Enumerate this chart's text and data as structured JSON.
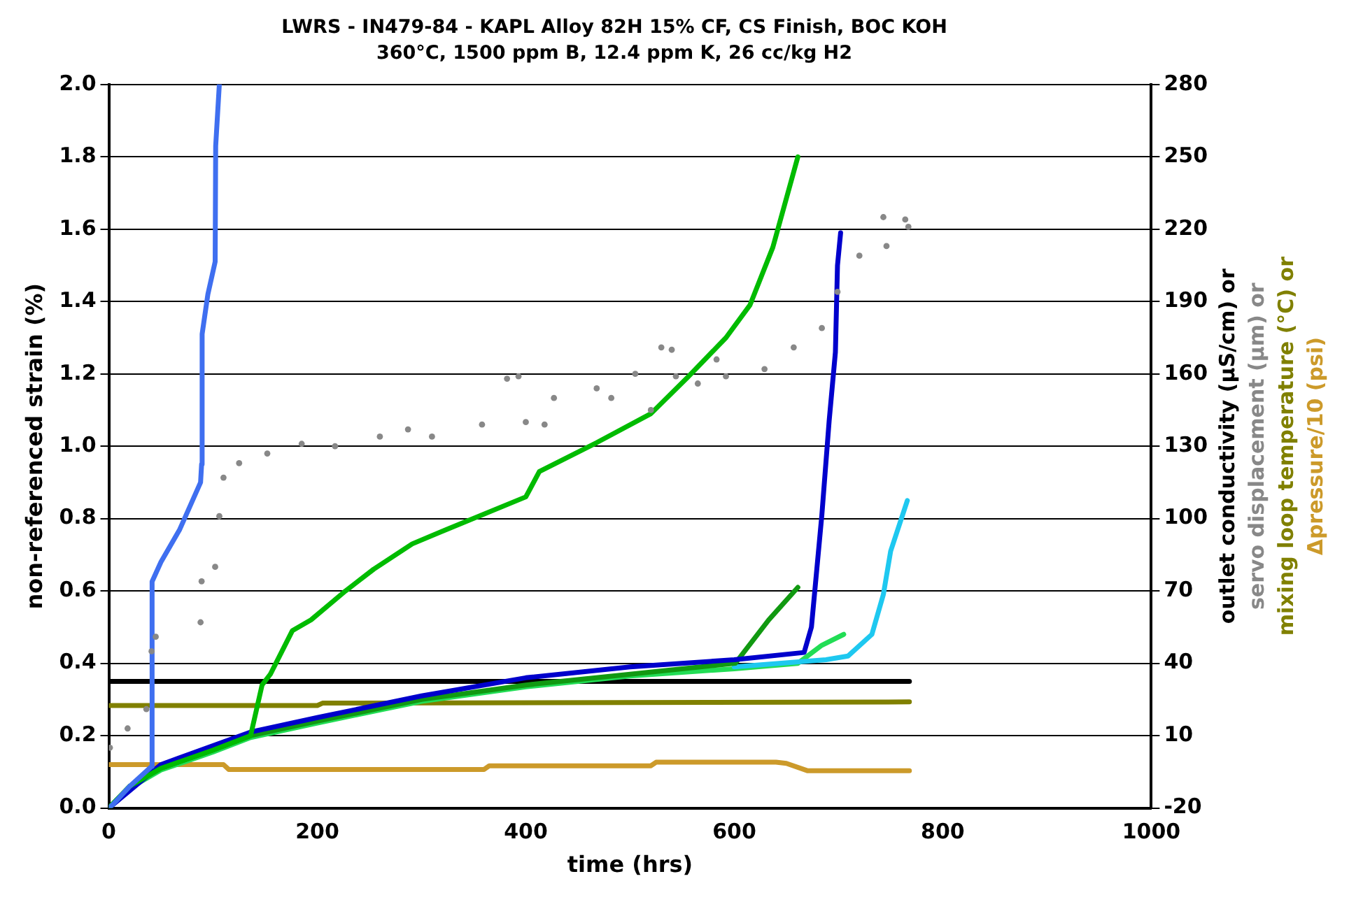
{
  "chart_data": {
    "type": "line",
    "title": "LWRS - IN479-84 - KAPL Alloy 82H 15% CF, CS Finish, BOC KOH",
    "subtitle": "360°C, 1500 ppm B, 12.4 ppm K, 26 cc/kg H2",
    "xlabel": "time (hrs)",
    "ylabel": "non-referenced strain (%)",
    "y2label": "outlet conductivity (µS/cm) or\nservo displacement (µm) or\nmixing loop temperature (°C) or\nΔpressure/10 (psi)",
    "xlim": [
      0,
      1000
    ],
    "xticks": [
      0,
      200,
      400,
      600,
      800,
      1000
    ],
    "ylim": [
      0,
      2.0
    ],
    "yticks": [
      {
        "value": 0,
        "label": "0.0"
      },
      {
        "value": 0.2,
        "label": "0.2"
      },
      {
        "value": 0.4,
        "label": "0.4"
      },
      {
        "value": 0.6,
        "label": "0.6"
      },
      {
        "value": 0.8,
        "label": "0.8"
      },
      {
        "value": 1.0,
        "label": "1.0"
      },
      {
        "value": 1.2,
        "label": "1.2"
      },
      {
        "value": 1.4,
        "label": "1.4"
      },
      {
        "value": 1.6,
        "label": "1.6"
      },
      {
        "value": 1.8,
        "label": "1.8"
      },
      {
        "value": 2.0,
        "label": "2.0"
      }
    ],
    "y2lim": [
      -20,
      280
    ],
    "y2ticks": [
      -20,
      10,
      40,
      70,
      100,
      130,
      160,
      190,
      220,
      250,
      280
    ],
    "grid": "y",
    "legend": false,
    "marker": "none",
    "line_style": "solid",
    "series": [
      {
        "color": "#3f6ff0",
        "x": [
          0,
          4,
          20,
          41,
          41.5,
          50,
          68,
          88,
          89,
          89.5,
          95,
          102,
          102.5,
          106
        ],
        "values": [
          0,
          0.01,
          0.06,
          0.115,
          0.626,
          0.68,
          0.77,
          0.9,
          0.95,
          1.31,
          1.42,
          1.51,
          1.83,
          2.0
        ]
      },
      {
        "color": "#00bb00",
        "x": [
          0,
          20,
          50,
          100,
          136,
          147,
          155,
          176,
          194,
          227,
          254,
          291,
          324,
          400,
          413,
          468,
          520,
          555,
          592,
          615,
          637,
          661
        ],
        "values": [
          0,
          0.06,
          0.11,
          0.16,
          0.2,
          0.34,
          0.37,
          0.49,
          0.52,
          0.6,
          0.66,
          0.73,
          0.77,
          0.86,
          0.93,
          1.01,
          1.09,
          1.19,
          1.3,
          1.39,
          1.55,
          1.8
        ]
      },
      {
        "color": "#0000cc",
        "x": [
          0,
          50,
          136,
          200,
          300,
          400,
          500,
          600,
          667,
          674,
          684,
          691,
          697,
          699,
          702
        ],
        "values": [
          0,
          0.12,
          0.21,
          0.25,
          0.31,
          0.36,
          0.39,
          0.41,
          0.43,
          0.5,
          0.81,
          1.07,
          1.26,
          1.5,
          1.59
        ]
      },
      {
        "color": "#119911",
        "x": [
          0,
          20,
          50,
          100,
          136,
          200,
          300,
          400,
          500,
          601,
          633,
          661
        ],
        "values": [
          0,
          0.06,
          0.11,
          0.16,
          0.2,
          0.24,
          0.3,
          0.34,
          0.37,
          0.4,
          0.52,
          0.61
        ]
      },
      {
        "color": "#1ec8f0",
        "x": [
          600,
          688,
          709,
          732,
          743,
          750,
          766
        ],
        "values": [
          0.39,
          0.41,
          0.42,
          0.48,
          0.59,
          0.71,
          0.85
        ]
      },
      {
        "color": "#22dd55",
        "x": [
          0,
          20,
          50,
          100,
          136,
          200,
          300,
          400,
          500,
          600,
          661,
          684,
          705
        ],
        "values": [
          0,
          0.055,
          0.105,
          0.155,
          0.195,
          0.235,
          0.295,
          0.335,
          0.365,
          0.385,
          0.4,
          0.45,
          0.48
        ]
      },
      {
        "color": "#000000",
        "axis": "y2",
        "x": [
          0,
          768
        ],
        "values": [
          32.5,
          32.5
        ]
      },
      {
        "color": "#888888",
        "axis": "y2",
        "type": "scatter",
        "marker": "circle",
        "x": [
          1,
          18,
          36,
          41,
          45,
          88,
          89,
          102,
          106,
          110,
          125,
          152,
          185,
          217,
          260,
          287,
          310,
          358,
          382,
          393,
          400,
          418,
          427,
          468,
          482,
          505,
          520,
          530,
          540,
          544,
          565,
          583,
          592,
          629,
          657,
          684,
          699,
          720,
          743,
          746,
          764,
          767
        ],
        "values": [
          5,
          13,
          21,
          45,
          51,
          57,
          74,
          80,
          101,
          117,
          123,
          127,
          131,
          130,
          134,
          137,
          134,
          139,
          158,
          159,
          140,
          139,
          150,
          154,
          150,
          160,
          145,
          171,
          170,
          159,
          156,
          166,
          159,
          162,
          171,
          179,
          194,
          209,
          225,
          213,
          224,
          221
        ]
      },
      {
        "color": "#808000",
        "axis": "y2",
        "x": [
          0,
          200,
          205,
          768
        ],
        "values": [
          22.5,
          22.5,
          23.5,
          24
        ]
      },
      {
        "color": "#cc9a2a",
        "axis": "y2",
        "x": [
          0,
          110,
          115,
          360,
          365,
          520,
          525,
          640,
          650,
          670,
          768
        ],
        "values": [
          -2,
          -2,
          -4,
          -4,
          -2.5,
          -2.5,
          -1,
          -1,
          -1.5,
          -4.5,
          -4.5
        ]
      }
    ]
  }
}
